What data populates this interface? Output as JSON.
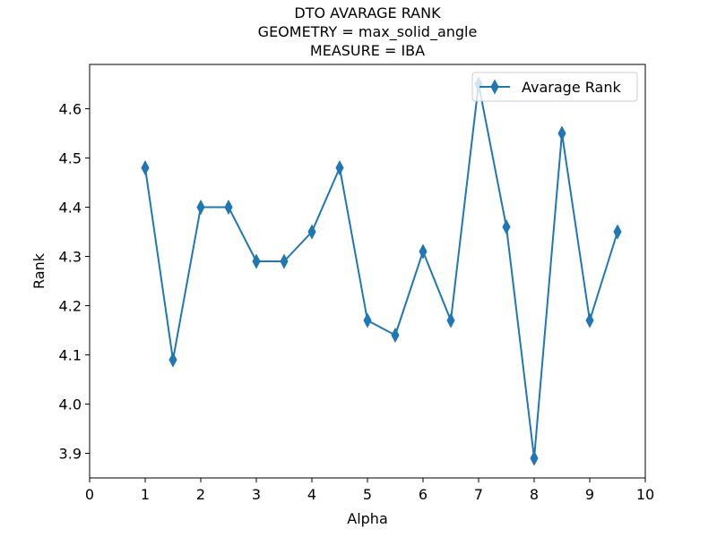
{
  "chart_data": {
    "type": "line",
    "title_lines": [
      "DTO AVARAGE RANK",
      "GEOMETRY = max_solid_angle",
      "MEASURE = IBA"
    ],
    "xlabel": "Alpha",
    "ylabel": "Rank",
    "xlim": [
      0,
      10
    ],
    "ylim": [
      3.85,
      4.69
    ],
    "x_ticks": [
      "0",
      "1",
      "2",
      "3",
      "4",
      "5",
      "6",
      "7",
      "8",
      "9",
      "10"
    ],
    "y_ticks": [
      "3.9",
      "4.0",
      "4.1",
      "4.2",
      "4.3",
      "4.4",
      "4.5",
      "4.6"
    ],
    "grid": false,
    "legend_position": "top-right",
    "series": [
      {
        "name": "Avarage Rank",
        "color": "#1f77b4",
        "marker": "thin-diamond",
        "x": [
          1,
          1.5,
          2,
          2.5,
          3,
          3.5,
          4,
          4.5,
          5,
          5.5,
          6,
          6.5,
          7,
          7.5,
          8,
          8.5,
          9,
          9.5
        ],
        "y": [
          4.48,
          4.09,
          4.4,
          4.4,
          4.29,
          4.29,
          4.35,
          4.48,
          4.17,
          4.14,
          4.31,
          4.17,
          4.65,
          4.36,
          3.89,
          4.55,
          4.17,
          4.35
        ]
      }
    ]
  }
}
